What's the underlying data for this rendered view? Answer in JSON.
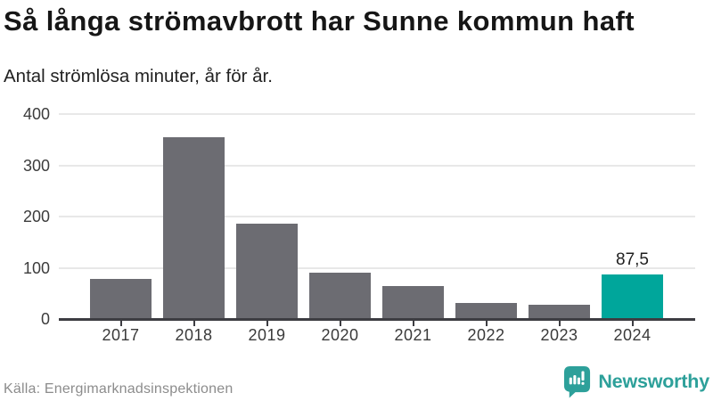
{
  "header": {
    "title": "Så långa strömavbrott har Sunne kommun haft",
    "subtitle": "Antal strömlösa minuter, år för år."
  },
  "chart_data": {
    "type": "bar",
    "title": "Så långa strömavbrott har Sunne kommun haft",
    "subtitle": "Antal strömlösa minuter, år för år.",
    "categories": [
      "2017",
      "2018",
      "2019",
      "2020",
      "2021",
      "2022",
      "2023",
      "2024"
    ],
    "values": [
      78,
      354,
      186,
      90,
      65,
      31,
      28,
      87.5
    ],
    "highlight_index": 7,
    "highlight_value_label": "87,5",
    "xlabel": "",
    "ylabel": "Antal strömlösa minuter",
    "ylim": [
      0,
      400
    ],
    "yticks": [
      0,
      100,
      200,
      300,
      400
    ],
    "grid": true,
    "legend": false
  },
  "footer": {
    "source": "Källa: Energimarknadsinspektionen",
    "brand": "Newsworthy"
  },
  "colors": {
    "bar": "#6c6c72",
    "highlight": "#00a69b",
    "brand": "#2da09a",
    "gridline": "#e8e8e8",
    "axis_line": "#3d3d42",
    "title_text": "#161616",
    "axis_text": "#3a3a3a",
    "source_text": "#8c8c8c"
  }
}
